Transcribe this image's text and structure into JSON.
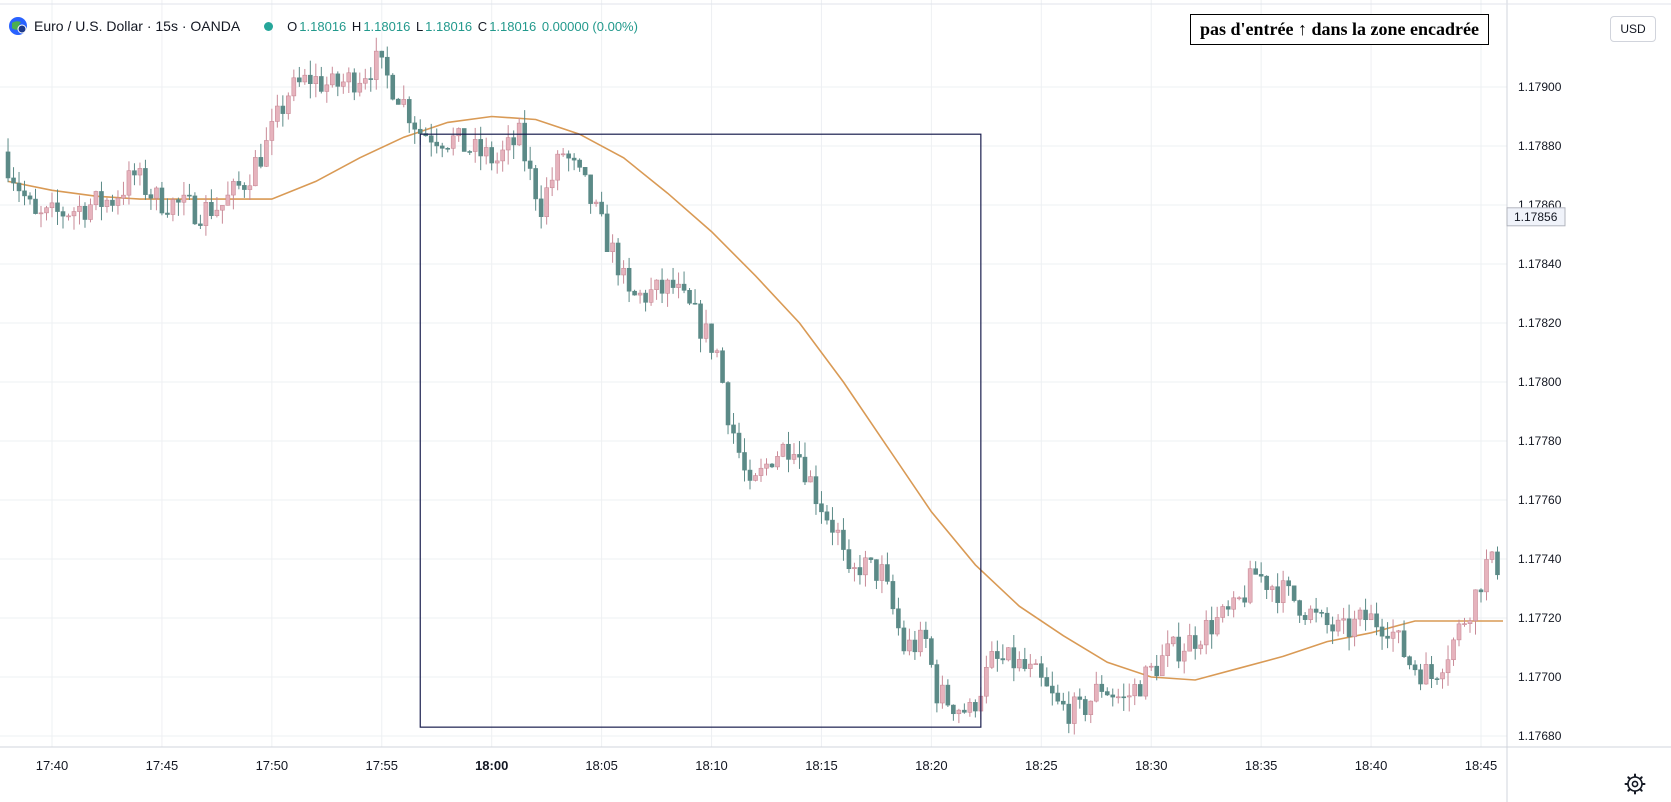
{
  "header": {
    "symbol": "Euro / U.S. Dollar · 15s · OANDA",
    "open": "1.18016",
    "high": "1.18016",
    "low": "1.18016",
    "close": "1.18016",
    "change": "0.00000 (0.00%)",
    "labels": {
      "o": "O",
      "h": "H",
      "l": "L",
      "c": "C"
    }
  },
  "annotation": "pas d'entrée ↑ dans la zone encadrée",
  "currency_button": "USD",
  "last_price_label": "1.17856",
  "colors": {
    "up": "#e6b3bd",
    "up_border": "#c98a97",
    "down": "#5b8a87",
    "ma": "#d99a55",
    "box": "#1a1f4f",
    "grid": "#eef0f3",
    "status_dot": "#26a69a",
    "change_text": "#22998c"
  },
  "icons": {
    "logo": "euro-dollar-globe-icon",
    "settings": "gear-icon"
  },
  "chart_data": {
    "type": "candlestick",
    "title": "Euro / U.S. Dollar · 15s · OANDA",
    "ylim": [
      1.1767,
      1.1791
    ],
    "y_ticks": [
      "1.17680",
      "1.17700",
      "1.17720",
      "1.17740",
      "1.17760",
      "1.17780",
      "1.17800",
      "1.17820",
      "1.17840",
      "1.17860",
      "1.17880",
      "1.17900"
    ],
    "x_ticks": [
      "17:40",
      "17:45",
      "17:50",
      "17:55",
      "18:00",
      "18:05",
      "18:10",
      "18:15",
      "18:20",
      "18:25",
      "18:30",
      "18:35",
      "18:40",
      "18:45"
    ],
    "x_ticks_bold": [
      "18:00"
    ],
    "grid": true,
    "highlighted_zone": {
      "x_start": "17:56:45",
      "x_end": "18:22:15",
      "y_high": 1.17884,
      "y_low": 1.17683
    },
    "price_anchors": [
      [
        "17:38:00",
        1.17878
      ],
      [
        "17:39:30",
        1.17855
      ],
      [
        "17:41:00",
        1.17858
      ],
      [
        "17:43:00",
        1.17862
      ],
      [
        "17:44:00",
        1.1787
      ],
      [
        "17:45:00",
        1.17862
      ],
      [
        "17:47:00",
        1.17858
      ],
      [
        "17:48:00",
        1.1786
      ],
      [
        "17:49:00",
        1.17868
      ],
      [
        "17:50:00",
        1.1788
      ],
      [
        "17:51:00",
        1.17898
      ],
      [
        "17:52:00",
        1.17903
      ],
      [
        "17:53:00",
        1.179
      ],
      [
        "17:54:00",
        1.17903
      ],
      [
        "17:55:00",
        1.17908
      ],
      [
        "17:56:00",
        1.17898
      ],
      [
        "17:57:00",
        1.17885
      ],
      [
        "17:58:30",
        1.17882
      ],
      [
        "17:59:30",
        1.17878
      ],
      [
        "18:00:30",
        1.17875
      ],
      [
        "18:01:30",
        1.17883
      ],
      [
        "18:02:00",
        1.1787
      ],
      [
        "18:02:30",
        1.1786
      ],
      [
        "18:03:30",
        1.17878
      ],
      [
        "18:04:30",
        1.17866
      ],
      [
        "18:05:30",
        1.17848
      ],
      [
        "18:06:00",
        1.1784
      ],
      [
        "18:06:30",
        1.17828
      ],
      [
        "18:07:30",
        1.1783
      ],
      [
        "18:08:30",
        1.17832
      ],
      [
        "18:09:30",
        1.17822
      ],
      [
        "18:10:30",
        1.1781
      ],
      [
        "18:11:00",
        1.1779
      ],
      [
        "18:11:30",
        1.17776
      ],
      [
        "18:12:00",
        1.17762
      ],
      [
        "18:13:00",
        1.17775
      ],
      [
        "18:14:00",
        1.1778
      ],
      [
        "18:15:00",
        1.17762
      ],
      [
        "18:16:00",
        1.17748
      ],
      [
        "18:16:30",
        1.17732
      ],
      [
        "18:17:00",
        1.17738
      ],
      [
        "18:18:00",
        1.17735
      ],
      [
        "18:19:00",
        1.1771
      ],
      [
        "18:20:00",
        1.17712
      ],
      [
        "18:20:30",
        1.17695
      ],
      [
        "18:21:00",
        1.17692
      ],
      [
        "18:22:00",
        1.17688
      ],
      [
        "18:23:00",
        1.17705
      ],
      [
        "18:24:00",
        1.17705
      ],
      [
        "18:25:00",
        1.177
      ],
      [
        "18:26:00",
        1.1769
      ],
      [
        "18:27:00",
        1.17688
      ],
      [
        "18:28:00",
        1.17697
      ],
      [
        "18:29:00",
        1.17692
      ],
      [
        "18:30:00",
        1.177
      ],
      [
        "18:31:00",
        1.17708
      ],
      [
        "18:32:00",
        1.17712
      ],
      [
        "18:33:00",
        1.17718
      ],
      [
        "18:34:00",
        1.17722
      ],
      [
        "18:35:00",
        1.17735
      ],
      [
        "18:36:00",
        1.1773
      ],
      [
        "18:37:00",
        1.17725
      ],
      [
        "18:38:00",
        1.17718
      ],
      [
        "18:39:00",
        1.17715
      ],
      [
        "18:40:00",
        1.1772
      ],
      [
        "18:41:00",
        1.17718
      ],
      [
        "18:42:00",
        1.17705
      ],
      [
        "18:43:00",
        1.177
      ],
      [
        "18:44:00",
        1.17712
      ],
      [
        "18:45:00",
        1.17728
      ],
      [
        "18:45:30",
        1.17738
      ]
    ],
    "moving_average": [
      [
        "17:38:00",
        1.17868
      ],
      [
        "17:40:00",
        1.17865
      ],
      [
        "17:42:00",
        1.17863
      ],
      [
        "17:44:00",
        1.17862
      ],
      [
        "17:46:00",
        1.17862
      ],
      [
        "17:48:00",
        1.17862
      ],
      [
        "17:50:00",
        1.17862
      ],
      [
        "17:52:00",
        1.17868
      ],
      [
        "17:54:00",
        1.17876
      ],
      [
        "17:56:00",
        1.17883
      ],
      [
        "17:58:00",
        1.17888
      ],
      [
        "18:00:00",
        1.1789
      ],
      [
        "18:02:00",
        1.17889
      ],
      [
        "18:04:00",
        1.17884
      ],
      [
        "18:06:00",
        1.17876
      ],
      [
        "18:08:00",
        1.17864
      ],
      [
        "18:10:00",
        1.17851
      ],
      [
        "18:12:00",
        1.17836
      ],
      [
        "18:14:00",
        1.1782
      ],
      [
        "18:16:00",
        1.178
      ],
      [
        "18:18:00",
        1.17778
      ],
      [
        "18:20:00",
        1.17756
      ],
      [
        "18:22:00",
        1.17738
      ],
      [
        "18:24:00",
        1.17724
      ],
      [
        "18:26:00",
        1.17714
      ],
      [
        "18:28:00",
        1.17705
      ],
      [
        "18:30:00",
        1.177
      ],
      [
        "18:32:00",
        1.17699
      ],
      [
        "18:34:00",
        1.17703
      ],
      [
        "18:36:00",
        1.17707
      ],
      [
        "18:38:00",
        1.17712
      ],
      [
        "18:40:00",
        1.17715
      ],
      [
        "18:42:00",
        1.17719
      ],
      [
        "18:44:00",
        1.17719
      ],
      [
        "18:46:00",
        1.17719
      ]
    ]
  }
}
